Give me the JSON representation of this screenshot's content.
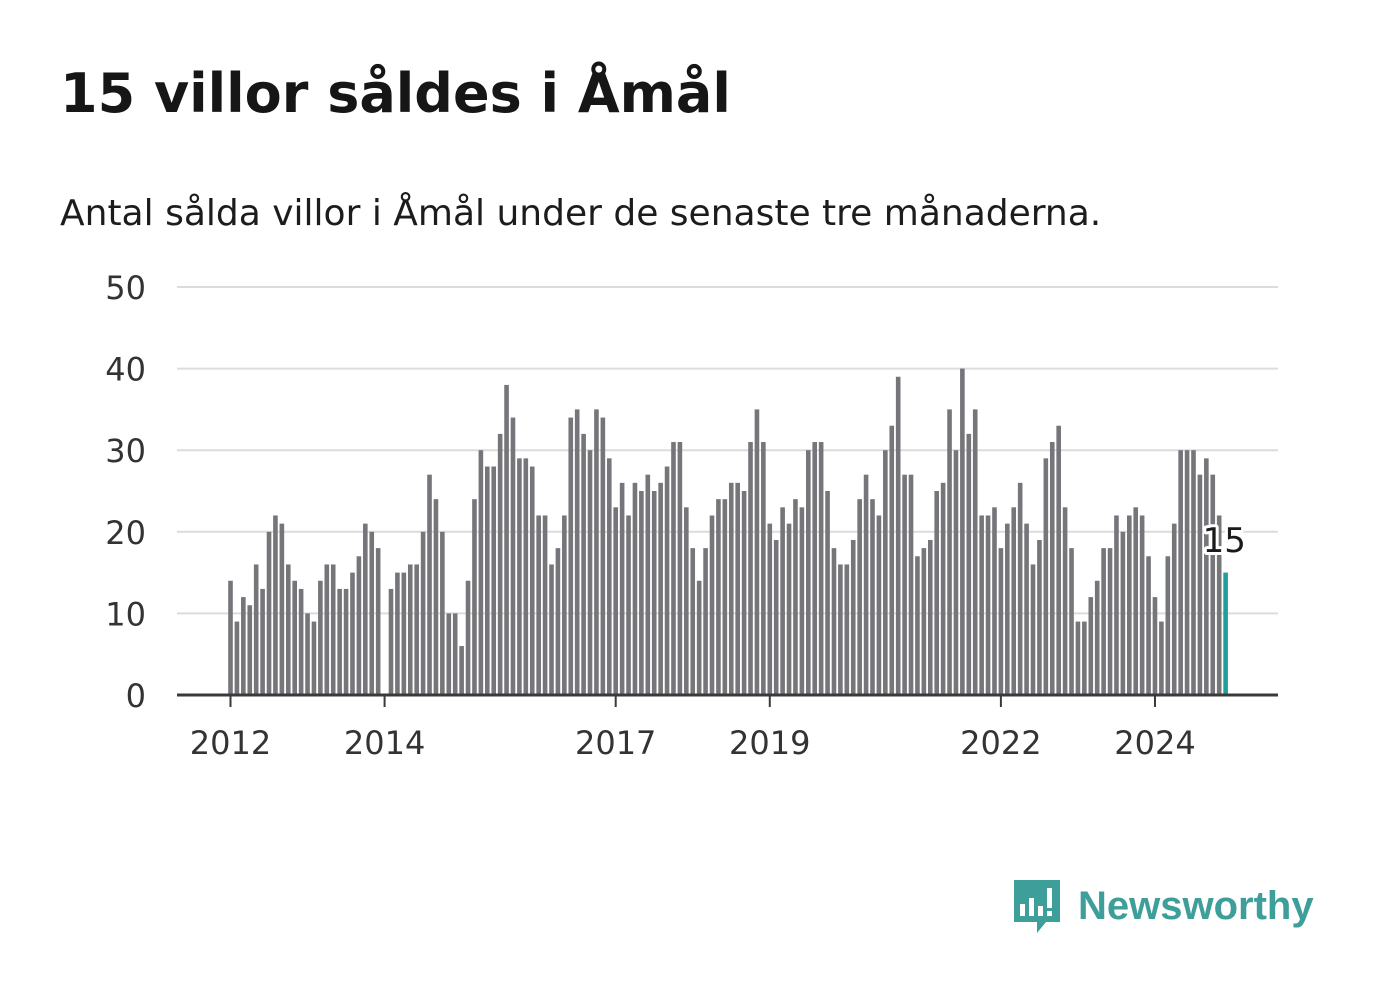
{
  "title": "15 villor såldes i Åmål",
  "subtitle": "Antal sålda villor i Åmål under de senaste tre månaderna.",
  "brand": {
    "name": "Newsworthy",
    "icon": "bar-chart-speech-bubble-icon",
    "color": "#3d9e9a"
  },
  "chart_data": {
    "type": "bar",
    "yticks": [
      0,
      10,
      20,
      30,
      40,
      50
    ],
    "ylim": [
      0,
      50
    ],
    "xticks": [
      "2012",
      "2014",
      "2017",
      "2019",
      "2022",
      "2024"
    ],
    "grid": true,
    "colors": {
      "bar": "#75757a",
      "highlight": "#1f9e9a",
      "grid": "#dcdcdc",
      "axis": "#3a3a3a"
    },
    "annotation": {
      "text": "15",
      "target": "last"
    },
    "series": [
      {
        "values": [
          14,
          9,
          12,
          11,
          16,
          13,
          20,
          22,
          21,
          16,
          14,
          13,
          10,
          9,
          14,
          16,
          16,
          13,
          13,
          15,
          17,
          21,
          20,
          18,
          0,
          13,
          15,
          15,
          16,
          16,
          20,
          27,
          24,
          20,
          10,
          10,
          6,
          14,
          24,
          30,
          28,
          28,
          32,
          38,
          34,
          29,
          29,
          28,
          22,
          22,
          16,
          18,
          22,
          34,
          35,
          32,
          30,
          35,
          34,
          29,
          23,
          26,
          22,
          26,
          25,
          27,
          25,
          26,
          28,
          31,
          31,
          23,
          18,
          14,
          18,
          22,
          24,
          24,
          26,
          26,
          25,
          31,
          35,
          31,
          21,
          19,
          23,
          21,
          24,
          23,
          30,
          31,
          31,
          25,
          18,
          16,
          16,
          19,
          24,
          27,
          24,
          22,
          30,
          33,
          39,
          27,
          27,
          17,
          18,
          19,
          25,
          26,
          35,
          30,
          40,
          32,
          35,
          22,
          22,
          23,
          18,
          21,
          23,
          26,
          21,
          16,
          19,
          29,
          31,
          33,
          23,
          18,
          9,
          9,
          12,
          14,
          18,
          18,
          22,
          20,
          22,
          23,
          22,
          17,
          12,
          9,
          17,
          21,
          30,
          30,
          30,
          27,
          29,
          27,
          22,
          15
        ]
      }
    ]
  }
}
